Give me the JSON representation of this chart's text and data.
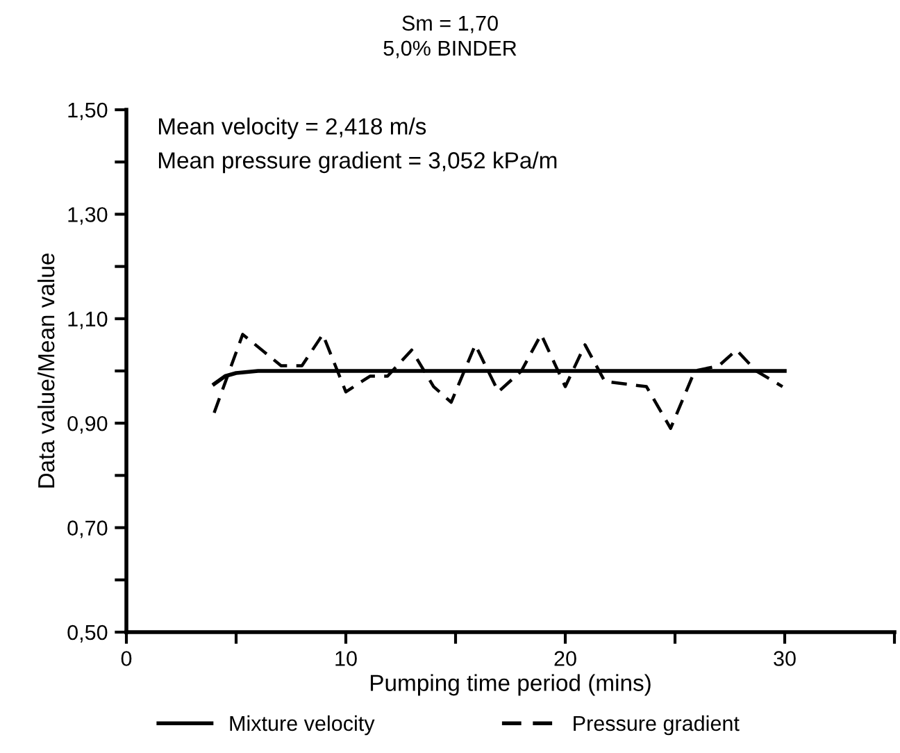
{
  "chart_data": {
    "type": "line",
    "title": "Sm = 1,70",
    "subtitle": "5,0% BINDER",
    "xlabel": "Pumping time period (mins)",
    "ylabel": "Data value/Mean value",
    "annotations": [
      "Mean velocity = 2,418 m/s",
      "Mean pressure gradient = 3,052 kPa/m"
    ],
    "series": [
      {
        "name": "Mixture velocity",
        "color": "#000000",
        "line_style": "solid",
        "x": [
          4.0,
          4.5,
          5.0,
          6.0,
          10.0,
          20.0,
          30.0
        ],
        "values": [
          0.975,
          0.99,
          0.996,
          1.0,
          1.0,
          1.0,
          1.0
        ]
      },
      {
        "name": "Pressure gradient",
        "color": "#000000",
        "line_style": "dashed",
        "x": [
          4.0,
          5.3,
          7.05,
          8.0,
          8.95,
          10.0,
          11.1,
          11.9,
          13.0,
          14.0,
          14.8,
          15.9,
          16.95,
          18.0,
          18.9,
          20.0,
          20.9,
          21.8,
          23.7,
          24.8,
          25.9,
          27.0,
          27.8,
          28.7,
          29.9
        ],
        "values": [
          0.92,
          1.07,
          1.01,
          1.01,
          1.07,
          0.96,
          0.99,
          0.99,
          1.04,
          0.97,
          0.94,
          1.05,
          0.96,
          1.0,
          1.07,
          0.97,
          1.05,
          0.98,
          0.97,
          0.89,
          1.0,
          1.01,
          1.04,
          1.0,
          0.97
        ]
      }
    ],
    "xlim": [
      0,
      35
    ],
    "xticks": [
      0,
      {
        "value": 5,
        "label": null
      },
      10,
      {
        "value": 15,
        "label": null
      },
      20,
      {
        "value": 25,
        "label": null
      },
      30,
      {
        "value": 35,
        "label": null
      }
    ],
    "ylim": [
      0.5,
      1.5
    ],
    "yticks": [
      {
        "value": 0.5,
        "label": "0,50"
      },
      {
        "value": 0.6,
        "label": null
      },
      {
        "value": 0.7,
        "label": "0,70"
      },
      {
        "value": 0.8,
        "label": null
      },
      {
        "value": 0.9,
        "label": "0,90"
      },
      {
        "value": 1.0,
        "label": null
      },
      {
        "value": 1.1,
        "label": "1,10"
      },
      {
        "value": 1.2,
        "label": null
      },
      {
        "value": 1.3,
        "label": "1,30"
      },
      {
        "value": 1.4,
        "label": null
      },
      {
        "value": 1.5,
        "label": "1,50"
      }
    ],
    "grid": false,
    "legend": "bottom"
  }
}
